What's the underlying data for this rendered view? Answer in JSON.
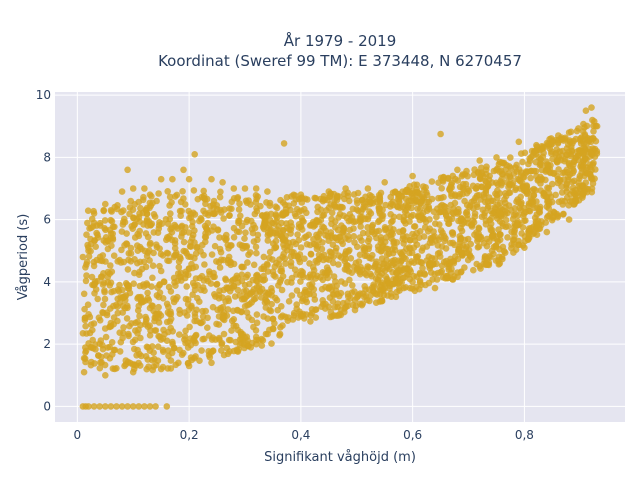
{
  "chart_data": {
    "type": "scatter",
    "title_lines": [
      "År 1979 - 2019",
      "Koordinat (Sweref 99 TM): E 373448, N 6270457"
    ],
    "xlabel": "Signifikant våghöjd (m)",
    "ylabel": "Vågperiod (s)",
    "xlim": [
      -0.04,
      0.98
    ],
    "ylim": [
      -0.5,
      10.1
    ],
    "xticks": [
      0,
      0.2,
      0.4,
      0.6,
      0.8
    ],
    "xtick_labels": [
      "0",
      "0,2",
      "0,4",
      "0,6",
      "0,8"
    ],
    "yticks": [
      0,
      2,
      4,
      6,
      8,
      10
    ],
    "ytick_labels": [
      "0",
      "2",
      "4",
      "6",
      "8",
      "10"
    ],
    "grid": true,
    "legend": "none",
    "colors": {
      "marker": "#d4a420",
      "plot_bg": "#e5e5f0",
      "grid": "#ffffff"
    },
    "points": [
      [
        0.01,
        0
      ],
      [
        0.015,
        0
      ],
      [
        0.02,
        0
      ],
      [
        0.03,
        0
      ],
      [
        0.04,
        0
      ],
      [
        0.05,
        0
      ],
      [
        0.06,
        0
      ],
      [
        0.07,
        0
      ],
      [
        0.08,
        0
      ],
      [
        0.09,
        0
      ],
      [
        0.1,
        0
      ],
      [
        0.11,
        0
      ],
      [
        0.12,
        0
      ],
      [
        0.13,
        0
      ],
      [
        0.14,
        0
      ],
      [
        0.16,
        0
      ],
      [
        0.01,
        2.35
      ],
      [
        0.012,
        1.55
      ],
      [
        0.012,
        1.1
      ],
      [
        0.01,
        4.8
      ],
      [
        0.02,
        5.0
      ],
      [
        0.03,
        5.9
      ],
      [
        0.03,
        6.2
      ],
      [
        0.05,
        6.5
      ],
      [
        0.06,
        6.3
      ],
      [
        0.08,
        6.9
      ],
      [
        0.09,
        7.6
      ],
      [
        0.1,
        7.0
      ],
      [
        0.12,
        7.0
      ],
      [
        0.13,
        6.8
      ],
      [
        0.15,
        7.3
      ],
      [
        0.17,
        7.3
      ],
      [
        0.19,
        7.6
      ],
      [
        0.21,
        8.1
      ],
      [
        0.2,
        7.3
      ],
      [
        0.24,
        7.3
      ],
      [
        0.26,
        7.2
      ],
      [
        0.28,
        7.0
      ],
      [
        0.3,
        7.0
      ],
      [
        0.32,
        7.0
      ],
      [
        0.34,
        6.9
      ],
      [
        0.37,
        8.45
      ],
      [
        0.4,
        6.8
      ],
      [
        0.45,
        6.9
      ],
      [
        0.48,
        7.0
      ],
      [
        0.52,
        7.0
      ],
      [
        0.55,
        7.2
      ],
      [
        0.6,
        7.4
      ],
      [
        0.65,
        8.75
      ],
      [
        0.68,
        7.6
      ],
      [
        0.72,
        7.9
      ],
      [
        0.75,
        8.0
      ],
      [
        0.79,
        8.5
      ],
      [
        0.82,
        8.2
      ],
      [
        0.85,
        8.5
      ],
      [
        0.88,
        8.8
      ],
      [
        0.91,
        9.5
      ],
      [
        0.92,
        9.6
      ],
      [
        0.93,
        9.0
      ],
      [
        0.9,
        8.6
      ],
      [
        0.28,
        2.8
      ],
      [
        0.3,
        2.2
      ],
      [
        0.32,
        2.0
      ],
      [
        0.35,
        2.5
      ],
      [
        0.4,
        2.9
      ],
      [
        0.42,
        3.0
      ],
      [
        0.45,
        3.2
      ],
      [
        0.5,
        3.5
      ],
      [
        0.55,
        3.8
      ],
      [
        0.6,
        4.0
      ],
      [
        0.64,
        3.8
      ],
      [
        0.68,
        4.3
      ],
      [
        0.72,
        4.5
      ],
      [
        0.76,
        4.8
      ],
      [
        0.8,
        5.1
      ],
      [
        0.84,
        5.6
      ],
      [
        0.88,
        6.0
      ],
      [
        0.91,
        7.0
      ],
      [
        0.05,
        1.0
      ],
      [
        0.1,
        1.1
      ],
      [
        0.15,
        1.2
      ],
      [
        0.2,
        1.3
      ],
      [
        0.24,
        1.4
      ]
    ],
    "bands": [
      {
        "x": [
          0.012,
          0.18
        ],
        "ylo": [
          1.2,
          1.15
        ],
        "yhi": [
          6.3,
          7.0
        ]
      },
      {
        "x": [
          0.18,
          0.35
        ],
        "ylo": [
          1.3,
          2.0
        ],
        "yhi": [
          7.0,
          6.8
        ]
      },
      {
        "x": [
          0.35,
          0.55
        ],
        "ylo": [
          2.2,
          3.4
        ],
        "yhi": [
          6.8,
          6.9
        ]
      },
      {
        "x": [
          0.55,
          0.75
        ],
        "ylo": [
          3.4,
          4.5
        ],
        "yhi": [
          6.9,
          7.8
        ]
      },
      {
        "x": [
          0.75,
          0.93
        ],
        "ylo": [
          4.5,
          7.0
        ],
        "yhi": [
          7.8,
          9.3
        ]
      }
    ],
    "fill_count": 2600
  }
}
